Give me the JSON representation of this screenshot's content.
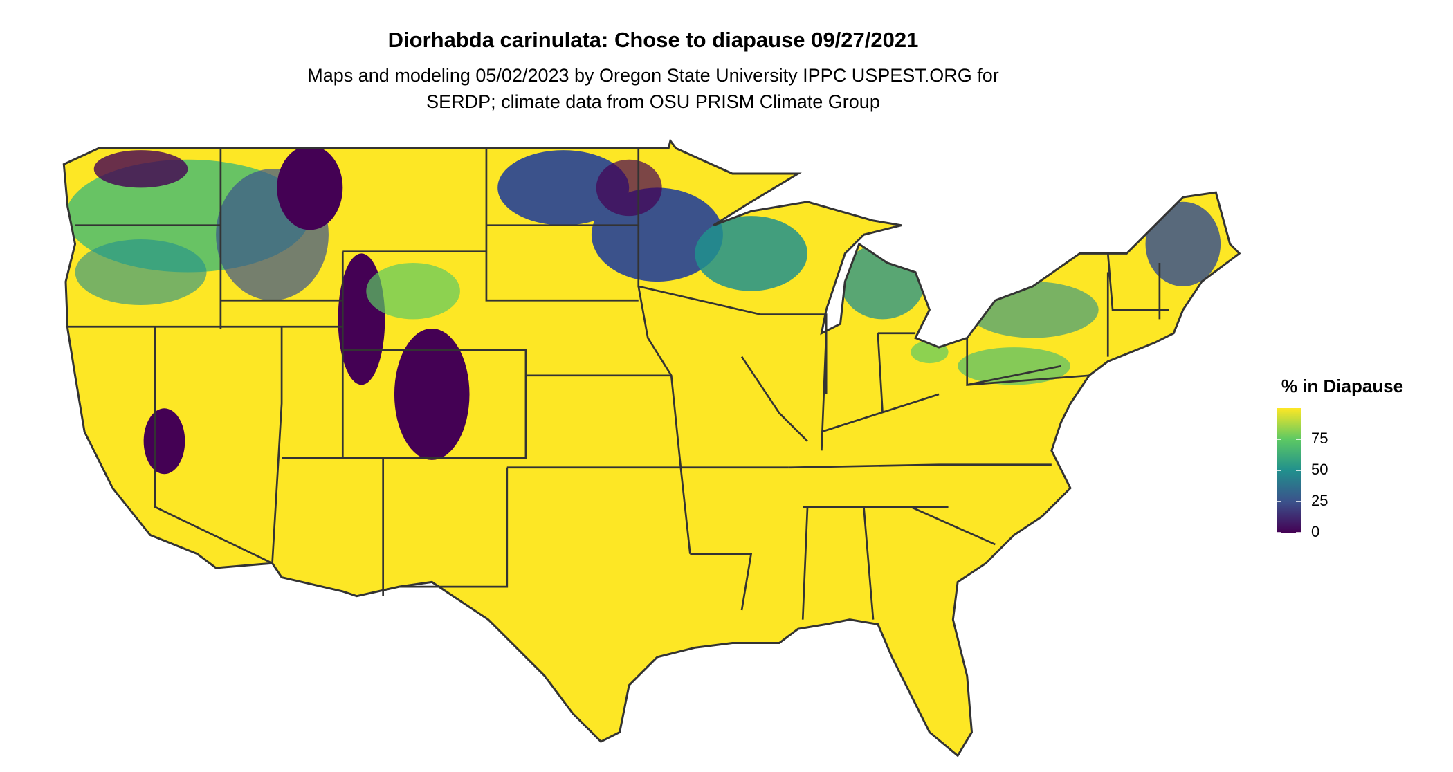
{
  "title": "Diorhabda carinulata: Chose to diapause 09/27/2021",
  "subtitle": [
    "Maps and modeling 05/02/2023 by Oregon State University IPPC USPEST.ORG for",
    "SERDP; climate data from OSU PRISM Climate Group"
  ],
  "legend": {
    "title": "% in Diapause",
    "range": [
      0,
      100
    ],
    "ticks": [
      0,
      25,
      50,
      75
    ],
    "colors": [
      "#440154",
      "#3b528b",
      "#21908d",
      "#5dc963",
      "#fde725"
    ]
  }
}
